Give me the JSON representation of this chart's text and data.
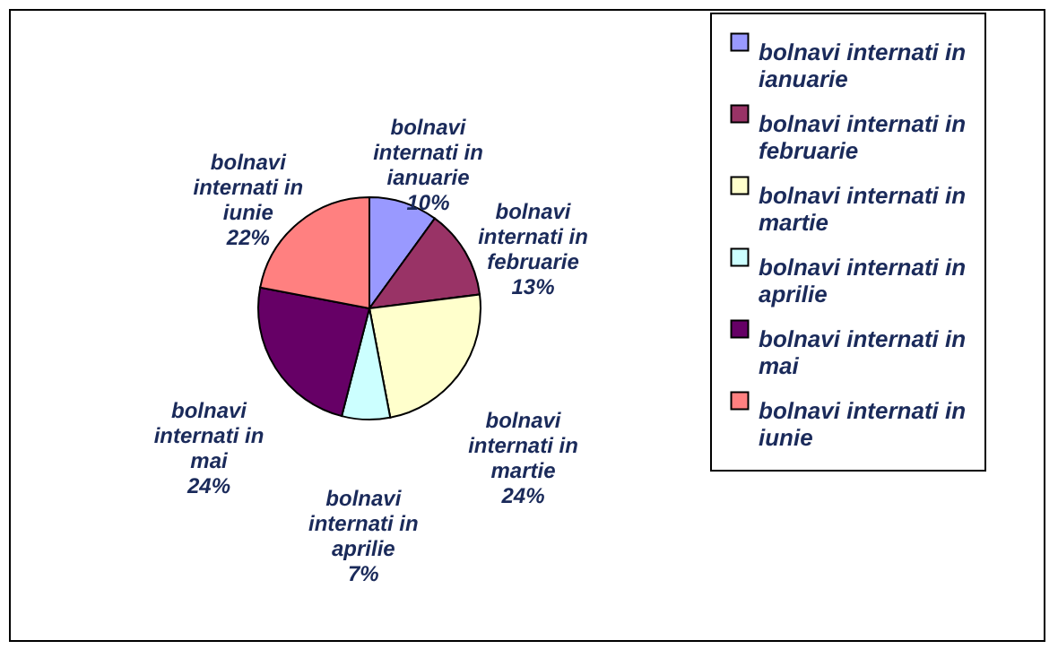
{
  "chart_data": {
    "type": "pie",
    "categories": [
      "bolnavi internati in ianuarie",
      "bolnavi internati in februarie",
      "bolnavi internati in martie",
      "bolnavi internati in aprilie",
      "bolnavi internati in mai",
      "bolnavi internati in iunie"
    ],
    "values": [
      10,
      13,
      24,
      7,
      24,
      22
    ],
    "value_labels": [
      "10%",
      "13%",
      "24%",
      "7%",
      "24%",
      "22%"
    ],
    "colors": [
      "#9999ff",
      "#993366",
      "#ffffcc",
      "#ccffff",
      "#660066",
      "#ff8080"
    ],
    "legend": "right"
  }
}
